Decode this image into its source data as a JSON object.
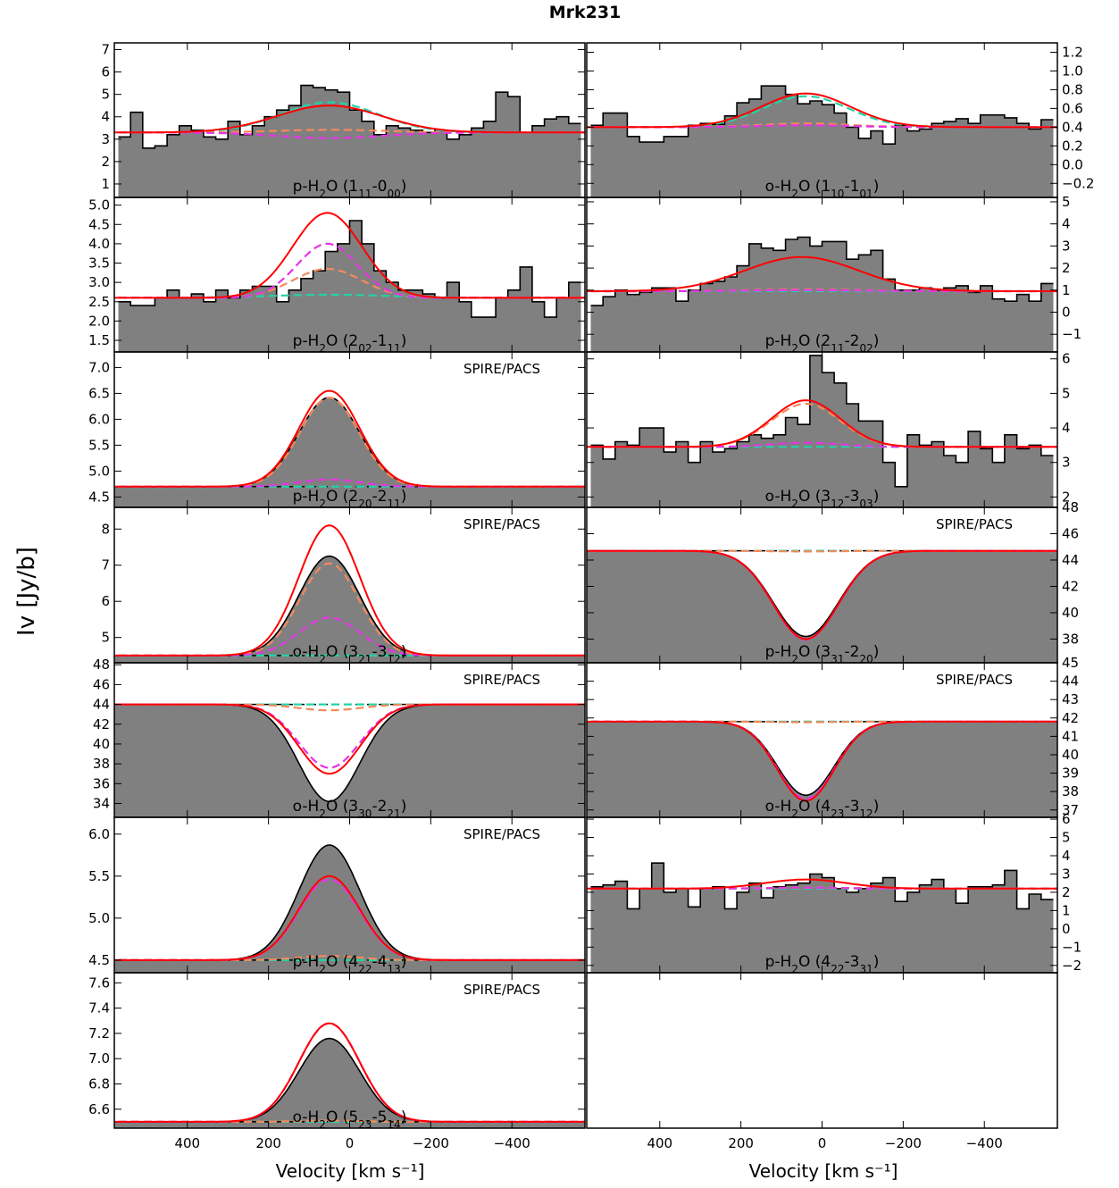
{
  "figure": {
    "title": "Mrk231",
    "ylabel": "Iv [Jy/b]",
    "xlabel_left": "Velocity [km s⁻¹]",
    "xlabel_right": "Velocity [km s⁻¹]",
    "colors": {
      "data_fill": "#808080",
      "total_model": "#ff0000",
      "component_orange": "#f4895c",
      "component_magenta": "#e633e6",
      "component_cyan": "#22d3a5",
      "continuum": "#000000"
    }
  },
  "chart_data": [
    {
      "type": "area",
      "panel": "left-1",
      "label": "p-H₂O (1₁₁-0₀₀)",
      "style": "hist",
      "xlim": [
        580,
        -580
      ],
      "ylim": [
        0.4,
        7.3
      ],
      "yticks": [
        1,
        2,
        3,
        4,
        5,
        6,
        7
      ],
      "yaxis": "left",
      "cont": 3.3,
      "x": [
        -555,
        -525,
        -495,
        -465,
        -435,
        -405,
        -375,
        -345,
        -315,
        -285,
        -255,
        -225,
        -195,
        -165,
        -135,
        -105,
        -75,
        -45,
        -15,
        15,
        45,
        75,
        105,
        135,
        165,
        195,
        225,
        255,
        285,
        315,
        345,
        375,
        405,
        435,
        465,
        495,
        525,
        555
      ],
      "y": [
        3.7,
        4.0,
        3.9,
        3.6,
        3.3,
        4.9,
        5.1,
        3.8,
        3.5,
        3.2,
        3.0,
        3.4,
        3.3,
        3.4,
        3.5,
        3.6,
        3.2,
        3.8,
        4.3,
        5.1,
        5.2,
        5.3,
        5.4,
        4.5,
        4.3,
        4.0,
        3.6,
        3.2,
        3.8,
        3.0,
        3.1,
        3.4,
        3.6,
        3.2,
        2.7,
        2.6,
        4.2,
        3.1
      ],
      "model": {
        "red": [
          3.3,
          1.2,
          130,
          50
        ],
        "orange": [
          3.3,
          0.12,
          130,
          50
        ],
        "magenta": [
          3.3,
          -0.25,
          130,
          50
        ],
        "cyan": [
          3.3,
          1.35,
          120,
          50
        ]
      }
    },
    {
      "type": "area",
      "panel": "right-1",
      "label": "o-H₂O (1₁₀-1₀₁)",
      "style": "hist",
      "xlim": [
        580,
        -580
      ],
      "ylim": [
        -0.35,
        1.3
      ],
      "yticks": [
        -0.2,
        0.0,
        0.2,
        0.4,
        0.6,
        0.8,
        1.0,
        1.2
      ],
      "ytickfmt": 1,
      "yaxis": "right",
      "cont": 0.4,
      "x": [
        -555,
        -525,
        -495,
        -465,
        -435,
        -405,
        -375,
        -345,
        -315,
        -285,
        -255,
        -225,
        -195,
        -165,
        -135,
        -105,
        -75,
        -45,
        -15,
        15,
        45,
        75,
        105,
        135,
        165,
        195,
        225,
        255,
        285,
        315,
        345,
        375,
        405,
        435,
        465,
        495,
        525,
        555
      ],
      "y": [
        0.48,
        0.38,
        0.44,
        0.5,
        0.53,
        0.53,
        0.44,
        0.49,
        0.46,
        0.44,
        0.38,
        0.36,
        0.42,
        0.22,
        0.36,
        0.28,
        0.4,
        0.55,
        0.64,
        0.68,
        0.65,
        0.75,
        0.84,
        0.84,
        0.7,
        0.66,
        0.52,
        0.43,
        0.44,
        0.42,
        0.3,
        0.3,
        0.24,
        0.24,
        0.3,
        0.55,
        0.55,
        0.42
      ],
      "model": {
        "red": [
          0.4,
          0.36,
          110,
          40
        ],
        "orange": [
          0.4,
          0.04,
          110,
          40
        ],
        "magenta": [
          0.4,
          0.02,
          110,
          40
        ],
        "cyan": [
          0.4,
          0.33,
          105,
          40
        ]
      }
    },
    {
      "type": "area",
      "panel": "left-2",
      "label": "p-H₂O (2₀₂-1₁₁)",
      "style": "hist",
      "xlim": [
        580,
        -580
      ],
      "ylim": [
        1.2,
        5.2
      ],
      "yticks": [
        1.5,
        2.0,
        2.5,
        3.0,
        3.5,
        4.0,
        4.5,
        5.0
      ],
      "ytickfmt": 1,
      "yaxis": "left",
      "cont": 2.6,
      "x": [
        -555,
        -525,
        -495,
        -465,
        -435,
        -405,
        -375,
        -345,
        -315,
        -285,
        -255,
        -225,
        -195,
        -165,
        -135,
        -105,
        -75,
        -45,
        -15,
        15,
        45,
        75,
        105,
        135,
        165,
        195,
        225,
        255,
        285,
        315,
        345,
        375,
        405,
        435,
        465,
        495,
        525,
        555
      ],
      "y": [
        3.0,
        2.6,
        2.1,
        2.5,
        3.4,
        2.8,
        2.6,
        2.1,
        2.1,
        2.5,
        3.0,
        2.6,
        2.7,
        2.8,
        2.8,
        3.0,
        3.3,
        4.0,
        4.6,
        4.0,
        3.8,
        3.3,
        3.1,
        2.8,
        2.5,
        2.9,
        2.9,
        2.8,
        2.6,
        2.8,
        2.5,
        2.7,
        2.6,
        2.8,
        2.6,
        2.4,
        2.4,
        2.5
      ],
      "model": {
        "red": [
          2.6,
          2.2,
          85,
          55
        ],
        "orange": [
          2.6,
          0.75,
          85,
          55
        ],
        "magenta": [
          2.6,
          1.4,
          75,
          55
        ],
        "cyan": [
          2.6,
          0.08,
          150,
          50
        ]
      }
    },
    {
      "type": "area",
      "panel": "right-2",
      "label": "p-H₂O (2₁₁-2₀₂)",
      "style": "hist",
      "xlim": [
        580,
        -580
      ],
      "ylim": [
        -1.8,
        5.2
      ],
      "yticks": [
        -1,
        0,
        1,
        2,
        3,
        4,
        5
      ],
      "yaxis": "right",
      "cont": 0.95,
      "x": [
        -555,
        -525,
        -495,
        -465,
        -435,
        -405,
        -375,
        -345,
        -315,
        -285,
        -255,
        -225,
        -195,
        -165,
        -135,
        -105,
        -75,
        -45,
        -15,
        15,
        45,
        75,
        105,
        135,
        165,
        195,
        225,
        255,
        285,
        315,
        345,
        375,
        405,
        435,
        465,
        495,
        525,
        555
      ],
      "y": [
        1.3,
        0.5,
        0.8,
        0.5,
        0.6,
        1.2,
        0.9,
        1.2,
        1.1,
        1.0,
        1.1,
        1.0,
        1.0,
        1.5,
        2.8,
        2.6,
        2.4,
        3.2,
        3.2,
        3.0,
        3.4,
        3.3,
        2.8,
        2.9,
        3.1,
        2.1,
        1.6,
        1.4,
        1.3,
        1.0,
        0.5,
        1.1,
        1.1,
        0.9,
        0.8,
        1.0,
        0.7,
        0.3
      ],
      "model": {
        "red": [
          0.95,
          1.55,
          140,
          50
        ],
        "orange": [
          0.95,
          0.08,
          140,
          50
        ],
        "magenta": [
          0.95,
          0.05,
          140,
          50
        ],
        "cyan": [
          0.95,
          0.0,
          140,
          50
        ]
      }
    },
    {
      "type": "area",
      "panel": "left-3",
      "label": "p-H₂O (2₂₀-2₁₁)",
      "style": "model",
      "note": "SPIRE/PACS",
      "xlim": [
        580,
        -580
      ],
      "ylim": [
        4.3,
        7.3
      ],
      "yticks": [
        4.5,
        5.0,
        5.5,
        6.0,
        6.5,
        7.0
      ],
      "ytickfmt": 1,
      "yaxis": "left",
      "cont": 4.7,
      "profile": [
        4.7,
        1.72,
        75,
        50
      ],
      "model": {
        "red": [
          4.7,
          1.85,
          75,
          50
        ],
        "orange": [
          4.7,
          1.72,
          73,
          50
        ],
        "magenta": [
          4.7,
          0.14,
          75,
          50
        ],
        "cyan": [
          4.7,
          0.0,
          75,
          50
        ]
      }
    },
    {
      "type": "area",
      "panel": "right-3",
      "label": "o-H₂O (3₁₂-3₀₃)",
      "style": "hist",
      "xlim": [
        580,
        -580
      ],
      "ylim": [
        1.7,
        6.2
      ],
      "yticks": [
        2,
        3,
        4,
        5,
        6
      ],
      "yaxis": "right",
      "cont": 3.45,
      "x": [
        -555,
        -525,
        -495,
        -465,
        -435,
        -405,
        -375,
        -345,
        -315,
        -285,
        -255,
        -225,
        -195,
        -165,
        -135,
        -105,
        -75,
        -45,
        -15,
        15,
        45,
        75,
        105,
        135,
        165,
        195,
        225,
        255,
        285,
        315,
        345,
        375,
        405,
        435,
        465,
        495,
        525,
        555
      ],
      "y": [
        3.2,
        3.5,
        3.4,
        3.8,
        3.0,
        3.4,
        3.9,
        3.0,
        3.2,
        3.6,
        3.5,
        3.8,
        2.3,
        3.0,
        4.2,
        4.2,
        4.7,
        5.3,
        5.6,
        6.1,
        4.1,
        4.3,
        3.8,
        3.7,
        3.8,
        3.6,
        3.4,
        3.3,
        3.6,
        3.0,
        3.6,
        3.3,
        4.0,
        4.0,
        3.5,
        3.6,
        3.1,
        3.5
      ],
      "model": {
        "red": [
          3.45,
          1.35,
          85,
          40
        ],
        "orange": [
          3.45,
          1.25,
          85,
          40
        ],
        "magenta": [
          3.45,
          0.12,
          85,
          40
        ],
        "cyan": [
          3.45,
          0.0,
          85,
          40
        ]
      }
    },
    {
      "type": "area",
      "panel": "left-4",
      "label": "o-H₂O (3₂₁-3₁₂)",
      "style": "model",
      "note": "SPIRE/PACS",
      "xlim": [
        580,
        -580
      ],
      "ylim": [
        4.3,
        8.6
      ],
      "yticks": [
        5,
        6,
        7,
        8
      ],
      "yaxis": "left",
      "cont": 4.5,
      "profile": [
        4.5,
        2.75,
        75,
        50
      ],
      "model": {
        "red": [
          4.5,
          3.6,
          75,
          50
        ],
        "orange": [
          4.5,
          2.55,
          73,
          50
        ],
        "magenta": [
          4.5,
          1.05,
          75,
          50
        ],
        "cyan": [
          4.5,
          0.0,
          75,
          50
        ]
      }
    },
    {
      "type": "area",
      "panel": "right-4",
      "label": "p-H₂O (3₃₁-2₂₀)",
      "style": "model",
      "note": "SPIRE/PACS",
      "xlim": [
        580,
        -580
      ],
      "ylim": [
        36.2,
        48.0
      ],
      "yticks": [
        38,
        40,
        42,
        44,
        46,
        48
      ],
      "yaxis": "right",
      "cont": 44.7,
      "profile": [
        44.7,
        -6.5,
        80,
        40
      ],
      "model": {
        "red": [
          44.7,
          -6.7,
          80,
          40
        ],
        "orange": [
          44.7,
          -0.05,
          80,
          40
        ],
        "magenta": [
          44.7,
          -6.75,
          80,
          40
        ],
        "cyan": [
          44.7,
          0.0,
          80,
          40
        ]
      }
    },
    {
      "type": "area",
      "panel": "left-5",
      "label": "o-H₂O (3₃₀-2₂₁)",
      "style": "model",
      "note": "SPIRE/PACS",
      "xlim": [
        580,
        -580
      ],
      "ylim": [
        32.6,
        48.2
      ],
      "yticks": [
        34,
        36,
        38,
        40,
        42,
        44,
        46,
        48
      ],
      "yaxis": "left",
      "cont": 44.0,
      "profile": [
        44.0,
        -9.8,
        75,
        50
      ],
      "model": {
        "red": [
          44.0,
          -7.0,
          75,
          50
        ],
        "orange": [
          44.0,
          -0.6,
          75,
          50
        ],
        "magenta": [
          44.0,
          -6.4,
          75,
          50
        ],
        "cyan": [
          44.0,
          0.0,
          75,
          50
        ]
      }
    },
    {
      "type": "area",
      "panel": "right-5",
      "label": "o-H₂O (4₂₃-3₁₂)",
      "style": "model",
      "note": "SPIRE/PACS",
      "xlim": [
        580,
        -580
      ],
      "ylim": [
        36.6,
        45.0
      ],
      "yticks": [
        37,
        38,
        39,
        40,
        41,
        42,
        43,
        44,
        45
      ],
      "yaxis": "right",
      "cont": 41.8,
      "profile": [
        41.8,
        -4.0,
        70,
        40
      ],
      "model": {
        "red": [
          41.8,
          -4.3,
          70,
          40
        ],
        "orange": [
          41.8,
          -0.03,
          70,
          40
        ],
        "magenta": [
          41.8,
          -4.2,
          70,
          40
        ],
        "cyan": [
          41.8,
          0.0,
          70,
          40
        ]
      }
    },
    {
      "type": "area",
      "panel": "left-6",
      "label": "p-H₂O (4₂₂-4₁₃)",
      "style": "model",
      "note": "SPIRE/PACS",
      "xlim": [
        580,
        -580
      ],
      "ylim": [
        4.35,
        6.2
      ],
      "yticks": [
        4.5,
        5.0,
        5.5,
        6.0
      ],
      "ytickfmt": 1,
      "yaxis": "left",
      "cont": 4.5,
      "profile": [
        4.5,
        1.37,
        75,
        50
      ],
      "model": {
        "red": [
          4.5,
          1.0,
          75,
          50
        ],
        "orange": [
          4.5,
          0.05,
          75,
          50
        ],
        "magenta": [
          4.5,
          0.96,
          75,
          50
        ],
        "cyan": [
          4.5,
          0.0,
          75,
          50
        ]
      }
    },
    {
      "type": "area",
      "panel": "right-6",
      "label": "p-H₂O (4₂₂-3₃₁)",
      "style": "hist",
      "xlim": [
        580,
        -580
      ],
      "ylim": [
        -2.4,
        6.1
      ],
      "yticks": [
        -2,
        -1,
        0,
        1,
        2,
        3,
        4,
        5,
        6
      ],
      "yaxis": "right",
      "cont": 2.2,
      "x": [
        -555,
        -525,
        -495,
        -465,
        -435,
        -405,
        -375,
        -345,
        -315,
        -285,
        -255,
        -225,
        -195,
        -165,
        -135,
        -105,
        -75,
        -45,
        -15,
        15,
        45,
        75,
        105,
        135,
        165,
        195,
        225,
        255,
        285,
        315,
        345,
        375,
        405,
        435,
        465,
        495,
        525,
        555
      ],
      "y": [
        1.6,
        1.9,
        1.1,
        3.2,
        2.4,
        2.3,
        2.3,
        1.4,
        2.2,
        2.7,
        2.4,
        2.0,
        1.5,
        2.8,
        2.5,
        2.2,
        2.0,
        2.2,
        2.8,
        3.0,
        2.5,
        2.4,
        2.3,
        1.7,
        2.5,
        2.0,
        1.1,
        2.3,
        2.2,
        1.2,
        2.2,
        2.0,
        3.6,
        2.2,
        1.1,
        2.6,
        2.4,
        2.3
      ],
      "model": {
        "red": [
          2.2,
          0.5,
          100,
          40
        ],
        "orange": [
          2.2,
          0.05,
          100,
          40
        ],
        "magenta": [
          2.2,
          0.05,
          100,
          40
        ],
        "cyan": [
          2.2,
          0.0,
          100,
          40
        ]
      }
    },
    {
      "type": "area",
      "panel": "left-7",
      "label": "o-H₂O (5₂₃-5₁₄)",
      "style": "model",
      "note": "SPIRE/PACS",
      "xlim": [
        580,
        -580
      ],
      "ylim": [
        6.45,
        7.68
      ],
      "yticks": [
        6.6,
        6.8,
        7.0,
        7.2,
        7.4,
        7.6
      ],
      "ytickfmt": 1,
      "yaxis": "left",
      "cont": 6.5,
      "profile": [
        6.5,
        0.66,
        75,
        50
      ],
      "model": {
        "red": [
          6.5,
          0.78,
          75,
          50
        ],
        "orange": [
          6.5,
          0.01,
          75,
          50
        ],
        "magenta": [
          6.5,
          0.78,
          75,
          50
        ],
        "cyan": [
          6.5,
          0.0,
          75,
          50
        ]
      }
    }
  ],
  "xticks": [
    400,
    200,
    0,
    -200,
    -400
  ]
}
